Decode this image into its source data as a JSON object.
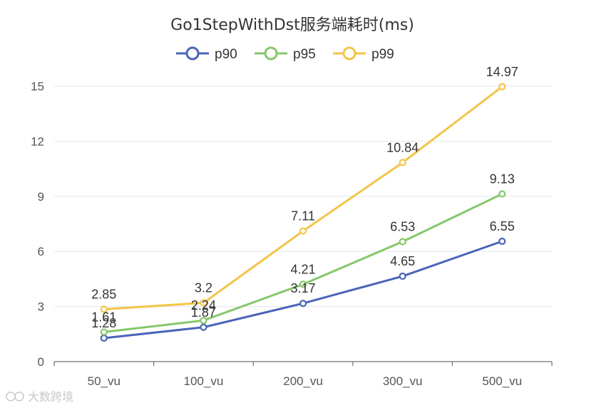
{
  "chart_data": {
    "type": "line",
    "title": "Go1StepWithDst服务端耗时(ms)",
    "xlabel": "",
    "ylabel": "",
    "categories": [
      "50_vu",
      "100_vu",
      "200_vu",
      "300_vu",
      "500_vu"
    ],
    "ylim": [
      0,
      15
    ],
    "yticks": [
      0,
      3,
      6,
      9,
      12,
      15
    ],
    "grid": true,
    "legend_position": "top-center",
    "series": [
      {
        "name": "p90",
        "color": "#4a64b8",
        "values": [
          1.28,
          1.87,
          3.17,
          4.65,
          6.55
        ],
        "labels": [
          "1.28",
          "1.87",
          "3.17",
          "4.65",
          "6.55"
        ]
      },
      {
        "name": "p95",
        "color": "#86c76a",
        "values": [
          1.61,
          2.24,
          4.21,
          6.53,
          9.13
        ],
        "labels": [
          "1.61",
          "2.24",
          "4.21",
          "6.53",
          "9.13"
        ]
      },
      {
        "name": "p99",
        "color": "#f3c447",
        "values": [
          2.85,
          3.2,
          7.11,
          10.84,
          14.97
        ],
        "labels": [
          "2.85",
          "3.2",
          "7.11",
          "10.84",
          "14.97"
        ]
      }
    ]
  },
  "watermark": {
    "text": "大数跨境"
  }
}
